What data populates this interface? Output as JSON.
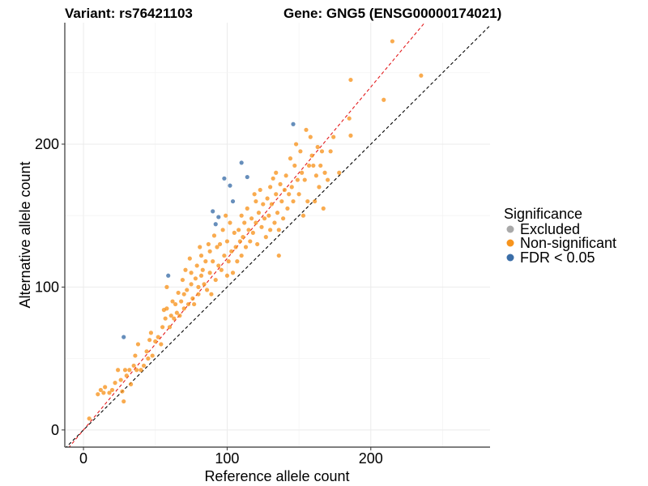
{
  "title_left": "Variant: rs76421103",
  "title_right": "Gene: GNG5 (ENSG00000174021)",
  "chart_data": {
    "type": "scatter",
    "xlabel": "Reference allele count",
    "ylabel": "Alternative allele count",
    "xlim": [
      -13,
      283
    ],
    "ylim": [
      -12,
      285
    ],
    "xticks": [
      0,
      100,
      200
    ],
    "yticks": [
      0,
      100,
      200
    ],
    "grid": true,
    "reference_lines": [
      {
        "name": "y = x",
        "slope": 1,
        "intercept": 0,
        "color": "#000000",
        "dash": "dashed"
      },
      {
        "name": "fit",
        "slope": 1.2,
        "intercept": 0,
        "color": "#e31a1c",
        "dash": "dashed"
      }
    ],
    "legend": {
      "title": "Significance",
      "position": "right",
      "entries": [
        {
          "label": "Excluded",
          "color": "#a9a9a9"
        },
        {
          "label": "Non-significant",
          "color": "#f7941d"
        },
        {
          "label": "FDR < 0.05",
          "color": "#3b6ea8"
        }
      ]
    },
    "series": [
      {
        "name": "Excluded",
        "color": "#a9a9a9",
        "points": []
      },
      {
        "name": "Non-significant",
        "color": "#f7941d",
        "points": [
          [
            4,
            8
          ],
          [
            10,
            25
          ],
          [
            12,
            28
          ],
          [
            14,
            26
          ],
          [
            15,
            30
          ],
          [
            18,
            26
          ],
          [
            20,
            28
          ],
          [
            22,
            33
          ],
          [
            24,
            42
          ],
          [
            26,
            35
          ],
          [
            27,
            27
          ],
          [
            28,
            20
          ],
          [
            29,
            42
          ],
          [
            30,
            38
          ],
          [
            32,
            42
          ],
          [
            33,
            32
          ],
          [
            35,
            45
          ],
          [
            36,
            52
          ],
          [
            37,
            42
          ],
          [
            38,
            60
          ],
          [
            40,
            42
          ],
          [
            42,
            45
          ],
          [
            44,
            55
          ],
          [
            45,
            50
          ],
          [
            46,
            63
          ],
          [
            47,
            68
          ],
          [
            48,
            52
          ],
          [
            50,
            62
          ],
          [
            52,
            65
          ],
          [
            54,
            60
          ],
          [
            55,
            72
          ],
          [
            56,
            84
          ],
          [
            57,
            78
          ],
          [
            58,
            85
          ],
          [
            58,
            100
          ],
          [
            60,
            72
          ],
          [
            61,
            80
          ],
          [
            62,
            90
          ],
          [
            63,
            78
          ],
          [
            64,
            88
          ],
          [
            65,
            82
          ],
          [
            66,
            96
          ],
          [
            67,
            80
          ],
          [
            68,
            90
          ],
          [
            69,
            105
          ],
          [
            70,
            85
          ],
          [
            70,
            95
          ],
          [
            71,
            112
          ],
          [
            72,
            98
          ],
          [
            73,
            88
          ],
          [
            74,
            120
          ],
          [
            75,
            102
          ],
          [
            75,
            110
          ],
          [
            76,
            92
          ],
          [
            77,
            88
          ],
          [
            78,
            106
          ],
          [
            79,
            115
          ],
          [
            80,
            100
          ],
          [
            80,
            95
          ],
          [
            81,
            128
          ],
          [
            82,
            108
          ],
          [
            82,
            122
          ],
          [
            83,
            112
          ],
          [
            84,
            102
          ],
          [
            85,
            118
          ],
          [
            86,
            98
          ],
          [
            87,
            130
          ],
          [
            88,
            110
          ],
          [
            88,
            125
          ],
          [
            89,
            95
          ],
          [
            90,
            118
          ],
          [
            91,
            136
          ],
          [
            92,
            105
          ],
          [
            93,
            128
          ],
          [
            94,
            115
          ],
          [
            95,
            130
          ],
          [
            96,
            112
          ],
          [
            97,
            140
          ],
          [
            98,
            122
          ],
          [
            99,
            150
          ],
          [
            100,
            108
          ],
          [
            100,
            132
          ],
          [
            101,
            118
          ],
          [
            102,
            145
          ],
          [
            103,
            125
          ],
          [
            104,
            110
          ],
          [
            105,
            138
          ],
          [
            106,
            128
          ],
          [
            107,
            118
          ],
          [
            108,
            140
          ],
          [
            109,
            132
          ],
          [
            110,
            122
          ],
          [
            110,
            150
          ],
          [
            111,
            135
          ],
          [
            112,
            145
          ],
          [
            113,
            128
          ],
          [
            114,
            155
          ],
          [
            115,
            140
          ],
          [
            116,
            132
          ],
          [
            117,
            148
          ],
          [
            118,
            138
          ],
          [
            119,
            165
          ],
          [
            120,
            145
          ],
          [
            120,
            160
          ],
          [
            121,
            130
          ],
          [
            122,
            152
          ],
          [
            123,
            168
          ],
          [
            124,
            142
          ],
          [
            125,
            158
          ],
          [
            126,
            148
          ],
          [
            127,
            135
          ],
          [
            128,
            162
          ],
          [
            129,
            150
          ],
          [
            130,
            170
          ],
          [
            130,
            140
          ],
          [
            131,
            158
          ],
          [
            132,
            176
          ],
          [
            133,
            145
          ],
          [
            134,
            165
          ],
          [
            134,
            180
          ],
          [
            135,
            152
          ],
          [
            136,
            122
          ],
          [
            136,
            140
          ],
          [
            137,
            172
          ],
          [
            138,
            160
          ],
          [
            139,
            148
          ],
          [
            140,
            168
          ],
          [
            141,
            178
          ],
          [
            142,
            155
          ],
          [
            143,
            165
          ],
          [
            144,
            190
          ],
          [
            145,
            170
          ],
          [
            146,
            160
          ],
          [
            147,
            185
          ],
          [
            148,
            200
          ],
          [
            149,
            175
          ],
          [
            150,
            165
          ],
          [
            151,
            195
          ],
          [
            152,
            180
          ],
          [
            153,
            150
          ],
          [
            154,
            175
          ],
          [
            155,
            210
          ],
          [
            156,
            160
          ],
          [
            157,
            185
          ],
          [
            158,
            205
          ],
          [
            159,
            192
          ],
          [
            160,
            185
          ],
          [
            161,
            160
          ],
          [
            162,
            178
          ],
          [
            163,
            198
          ],
          [
            164,
            170
          ],
          [
            165,
            185
          ],
          [
            166,
            195
          ],
          [
            167,
            155
          ],
          [
            168,
            180
          ],
          [
            170,
            175
          ],
          [
            172,
            195
          ],
          [
            174,
            205
          ],
          [
            178,
            180
          ],
          [
            185,
            218
          ],
          [
            186,
            206
          ],
          [
            186,
            245
          ],
          [
            209,
            231
          ],
          [
            215,
            272
          ],
          [
            235,
            248
          ]
        ]
      },
      {
        "name": "FDR < 0.05",
        "color": "#3b6ea8",
        "points": [
          [
            28,
            65
          ],
          [
            59,
            108
          ],
          [
            90,
            153
          ],
          [
            92,
            144
          ],
          [
            94,
            149
          ],
          [
            98,
            176
          ],
          [
            102,
            171
          ],
          [
            104,
            160
          ],
          [
            110,
            187
          ],
          [
            114,
            177
          ],
          [
            146,
            214
          ]
        ]
      }
    ]
  }
}
